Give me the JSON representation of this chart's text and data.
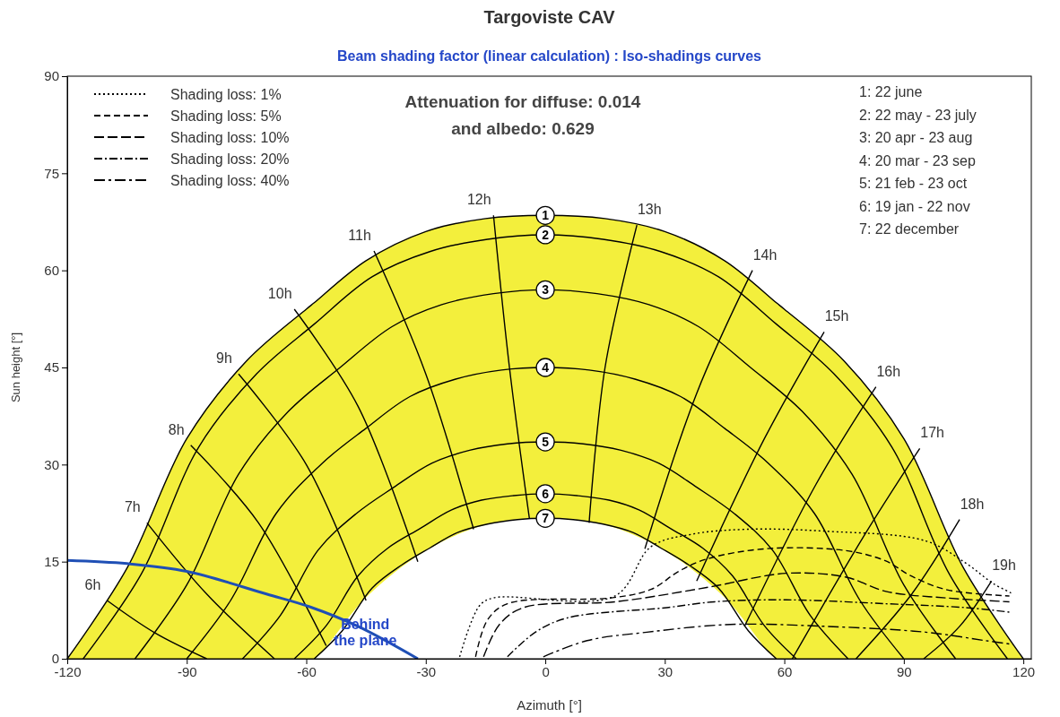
{
  "chart_data": {
    "type": "line",
    "title": "Targoviste CAV",
    "subtitle": "Beam shading factor (linear calculation) : Iso-shadings curves",
    "xlabel": "Azimuth [°]",
    "ylabel": "Sun height [°]",
    "xlim": [
      -120,
      122
    ],
    "ylim": [
      0,
      90
    ],
    "xticks": [
      -120,
      -90,
      -60,
      -30,
      0,
      30,
      60,
      90,
      120
    ],
    "yticks": [
      0,
      15,
      30,
      45,
      60,
      75,
      90
    ],
    "grid": false,
    "legend": "top left",
    "series": [
      {
        "name": "1",
        "color": "#000000",
        "x": [
          -120,
          -105,
          -90,
          -75,
          -60,
          -58,
          -45,
          -30,
          -15,
          0,
          15,
          30,
          45,
          58,
          60,
          75,
          90,
          105,
          120
        ],
        "values": [
          0,
          14,
          34,
          46,
          54,
          55,
          61.5,
          66,
          68,
          68.5,
          68,
          66,
          61.5,
          55,
          54,
          46,
          34,
          14,
          0
        ],
        "lower": [
          0,
          0,
          0,
          0,
          0,
          0,
          9.5,
          16.7,
          20.7,
          21.7,
          20.7,
          16.7,
          9.5,
          0,
          0,
          0,
          0,
          0,
          0
        ],
        "upper": [
          0,
          14,
          34,
          46,
          54,
          55,
          61.5,
          66,
          68,
          68.5,
          68,
          66,
          61.5,
          55,
          54,
          46,
          34,
          14,
          0
        ]
      },
      {
        "name": "2",
        "color": "#000000",
        "x": [
          -116,
          -101.5,
          -87,
          -72.5,
          -58,
          -43.5,
          -29,
          -14.5,
          0,
          14.5,
          29,
          43.5,
          58,
          72.5,
          87,
          101.5,
          116
        ],
        "values": [
          0,
          13,
          32.7,
          44,
          51.7,
          59,
          62.9,
          64.8,
          65.5,
          64.8,
          62.9,
          59,
          51.7,
          44,
          32.7,
          13,
          0
        ]
      },
      {
        "name": "3",
        "color": "#000000",
        "x": [
          -103,
          -90,
          -77,
          -64.5,
          -51.5,
          -38.5,
          -26,
          -13,
          0,
          13,
          26,
          38.5,
          51.5,
          64.5,
          77,
          90,
          103
        ],
        "values": [
          0,
          11.4,
          28.5,
          38.2,
          45,
          51.3,
          54.7,
          56.4,
          57,
          56.4,
          54.7,
          51.3,
          45,
          38.2,
          28.5,
          11.4,
          0
        ]
      },
      {
        "name": "4",
        "color": "#000000",
        "x": [
          -90,
          -79,
          -67.5,
          -56,
          -45,
          -34,
          -22.5,
          -11,
          0,
          11,
          22.5,
          34,
          45,
          56,
          67.5,
          79,
          90
        ],
        "values": [
          0,
          9,
          22.5,
          30.2,
          35.6,
          40.5,
          43.2,
          44.6,
          45,
          44.6,
          43.2,
          40.5,
          35.6,
          30.2,
          22.5,
          9,
          0
        ]
      },
      {
        "name": "5",
        "color": "#000000",
        "x": [
          -76,
          -66.5,
          -57,
          -47.5,
          -38,
          -28.5,
          -19,
          -9.5,
          0,
          9.5,
          19,
          28.5,
          38,
          47.5,
          57,
          66.5,
          76
        ],
        "values": [
          0,
          6.7,
          16.8,
          22.4,
          26.5,
          30.2,
          32.2,
          33.2,
          33.5,
          33.2,
          32.2,
          30.2,
          26.5,
          22.4,
          16.8,
          6.7,
          0
        ]
      },
      {
        "name": "6",
        "color": "#000000",
        "x": [
          -63,
          -55,
          -47,
          -39.5,
          -31.5,
          -23.5,
          -16,
          -8,
          0,
          8,
          16,
          23.5,
          31.5,
          39.5,
          47,
          55,
          63
        ],
        "values": [
          0,
          5.1,
          12.8,
          17.1,
          20.1,
          23,
          24.5,
          25.2,
          25.5,
          25.2,
          24.5,
          23,
          20.1,
          17.1,
          12.8,
          5.1,
          0
        ]
      },
      {
        "name": "7",
        "color": "#000000",
        "x": [
          -58,
          -51,
          -43.5,
          -36,
          -29,
          -22,
          -14.5,
          -7,
          0,
          7,
          14.5,
          22,
          29,
          36,
          43.5,
          51,
          58
        ],
        "values": [
          0,
          4.3,
          10.9,
          14.5,
          17.1,
          19.5,
          20.8,
          21.5,
          21.7,
          21.5,
          20.8,
          19.5,
          17.1,
          14.5,
          10.9,
          4.3,
          0
        ]
      },
      {
        "color": "#000000",
        "x": [
          -110,
          -98,
          -85
        ],
        "values": [
          9,
          4,
          0
        ]
      },
      {
        "color": "#000000",
        "x": [
          -100,
          -85,
          -68
        ],
        "values": [
          21,
          10,
          0
        ]
      },
      {
        "color": "#000000",
        "x": [
          -89,
          -72,
          -55
        ],
        "values": [
          33,
          21,
          2
        ]
      },
      {
        "color": "#000000",
        "x": [
          -77,
          -60,
          -45
        ],
        "values": [
          44,
          30,
          9
        ]
      },
      {
        "color": "#000000",
        "x": [
          -63,
          -47,
          -32
        ],
        "values": [
          54,
          39,
          15
        ]
      },
      {
        "color": "#000000",
        "x": [
          -43,
          -30,
          -18
        ],
        "values": [
          63,
          44,
          20
        ]
      },
      {
        "color": "#000000",
        "x": [
          -13,
          -9,
          -4
        ],
        "values": [
          68.5,
          45,
          21.7
        ]
      },
      {
        "color": "#000000",
        "x": [
          23,
          15,
          11
        ],
        "values": [
          67,
          45,
          21
        ]
      },
      {
        "color": "#000000",
        "x": [
          52,
          38,
          25
        ],
        "values": [
          60,
          41,
          17
        ]
      },
      {
        "color": "#000000",
        "x": [
          70,
          55,
          38
        ],
        "values": [
          50.5,
          34,
          12
        ]
      },
      {
        "color": "#000000",
        "x": [
          83,
          68,
          50
        ],
        "values": [
          42,
          27,
          5
        ]
      },
      {
        "color": "#000000",
        "x": [
          94,
          80,
          62
        ],
        "values": [
          32.5,
          19,
          0
        ]
      },
      {
        "color": "#000000",
        "x": [
          104,
          92,
          78
        ],
        "values": [
          21.5,
          10,
          0
        ]
      },
      {
        "color": "#000000",
        "x": [
          112,
          104,
          95
        ],
        "values": [
          12,
          5,
          0
        ]
      },
      {
        "color": "#1f4fb5",
        "x": [
          -120,
          -105,
          -90,
          -70,
          -59,
          -47,
          -32
        ],
        "values": [
          15.2,
          14.7,
          13.5,
          10,
          8,
          5,
          0
        ]
      },
      {
        "name": "Shading loss: 1%",
        "color": "#000000",
        "line_style": "dotted",
        "x": [
          -21.5,
          -16.5,
          -13,
          17.5,
          26.5,
          36.5,
          50.5,
          70.5,
          95.5,
          105.5,
          112.5,
          117.5
        ],
        "values": [
          0.3,
          8.2,
          9.4,
          9.7,
          17.3,
          19.2,
          20,
          19.7,
          18.2,
          14.8,
          11.6,
          10
        ]
      },
      {
        "name": "Shading loss: 5%",
        "color": "#000000",
        "line_style": "dashed",
        "x": [
          -17.5,
          -14.5,
          -9.5,
          16.5,
          26.5,
          33.5,
          40.5,
          55.5,
          75.5,
          85.5,
          91.5,
          100.5,
          116.5
        ],
        "values": [
          0.3,
          6,
          8.5,
          9.4,
          10.7,
          13.5,
          15.4,
          17,
          16.7,
          15.1,
          12.9,
          10.7,
          9.7
        ]
      },
      {
        "name": "Shading loss: 10%",
        "color": "#000000",
        "line_style": "dashed",
        "x": [
          -15.5,
          -11.5,
          -5.5,
          17.5,
          40.5,
          60.5,
          75.5,
          85.5,
          100.5,
          116.5
        ],
        "values": [
          0.3,
          5.3,
          7.9,
          8.8,
          11,
          13.2,
          12.6,
          10.4,
          9.4,
          8.8
        ]
      },
      {
        "name": "Shading loss: 20%",
        "color": "#000000",
        "line_style": "dashed",
        "x": [
          -9.5,
          -2.5,
          5.5,
          30.5,
          42.5,
          60.5,
          85.5,
          105.5,
          116.5
        ],
        "values": [
          0.3,
          4.1,
          6.3,
          7.9,
          8.8,
          9.1,
          8.5,
          7.9,
          7.2
        ]
      },
      {
        "name": "Shading loss: 40%",
        "color": "#000000",
        "line_style": "dashed",
        "x": [
          -0.5,
          10.5,
          25.5,
          46.5,
          70.5,
          95.5,
          110.5,
          117.5
        ],
        "values": [
          0.3,
          2.8,
          4.1,
          5.3,
          5,
          4.1,
          2.8,
          2.2
        ]
      }
    ],
    "annotations": [
      "Attenuation for diffuse: 0.014\nand albedo: 0.629",
      "1: 22 june",
      "2: 22 may - 23 july",
      "3: 20 apr - 23 aug",
      "4: 20 mar - 23 sep",
      "5: 21 feb - 23 oct",
      "6: 19 jan - 22 nov",
      "7: 22 december",
      {
        "text": "6h",
        "x": -110,
        "y": 9
      },
      {
        "text": "7h",
        "x": -100,
        "y": 21
      },
      {
        "text": "8h",
        "x": -89,
        "y": 33
      },
      {
        "text": "9h",
        "x": -77,
        "y": 44
      },
      {
        "text": "10h",
        "x": -63,
        "y": 54
      },
      {
        "text": "11h",
        "x": -43,
        "y": 63
      },
      {
        "text": "12h",
        "x": -13,
        "y": 68.5
      },
      {
        "text": "13h",
        "x": 23,
        "y": 67
      },
      {
        "text": "14h",
        "x": 52,
        "y": 60
      },
      {
        "text": "15h",
        "x": 70,
        "y": 50.5
      },
      {
        "text": "16h",
        "x": 83,
        "y": 42
      },
      {
        "text": "17h",
        "x": 94,
        "y": 32.5
      },
      {
        "text": "18h",
        "x": 104,
        "y": 21.5
      },
      {
        "text": "19h",
        "x": 112,
        "y": 12
      },
      {
        "text": "Behind the plane",
        "x": -47,
        "y": 5
      }
    ]
  }
}
